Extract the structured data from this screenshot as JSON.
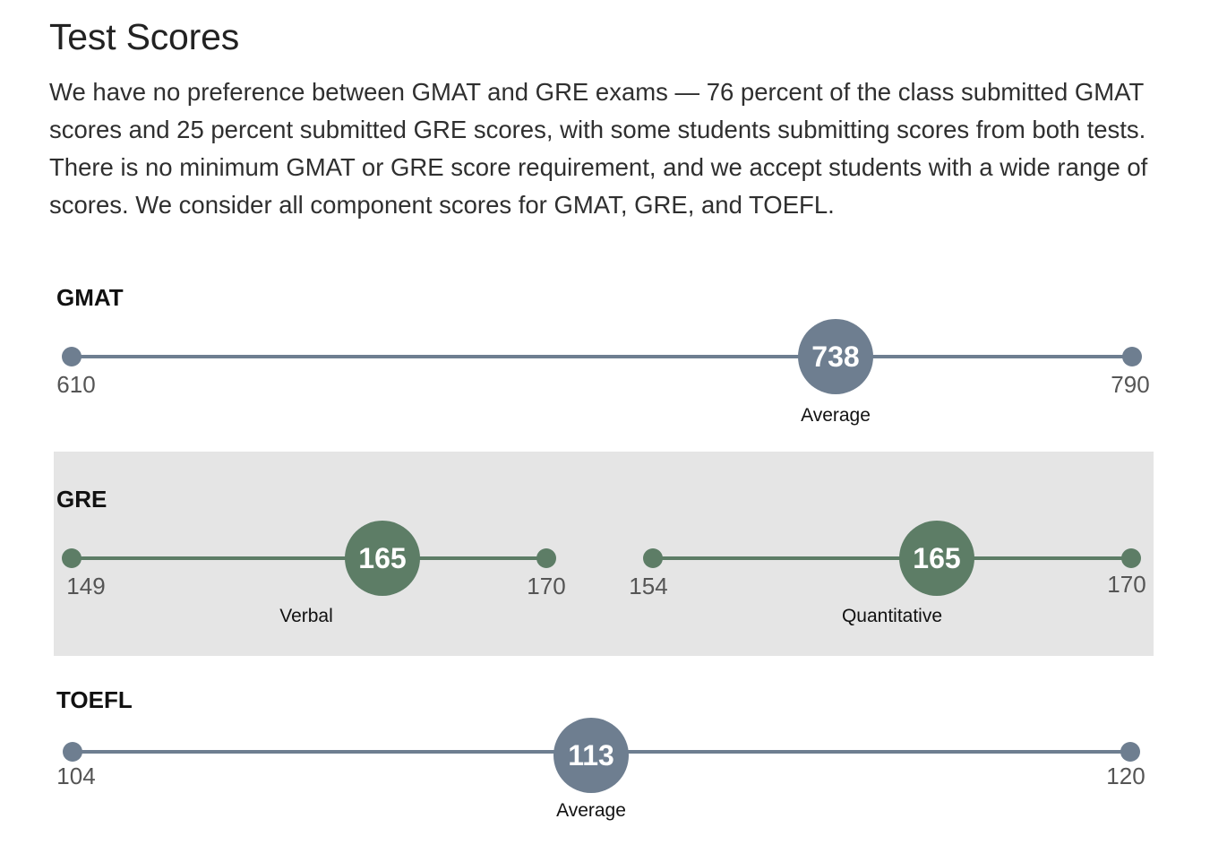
{
  "title": "Test Scores",
  "intro": "We have no preference between GMAT and GRE exams — 76 percent of the class submitted GMAT scores and 25 percent submitted GRE scores, with some students submitting scores from both tests. There is no minimum GMAT or GRE score requirement, and we accept students with a wide range of scores. We consider all component scores for GMAT, GRE, and TOEFL.",
  "colors": {
    "blue_accent": "#6e7e90",
    "green_accent": "#5d7d66",
    "shaded_background": "#e5e5e5"
  },
  "gmat": {
    "heading": "GMAT",
    "min": "610",
    "max": "790",
    "score": "738",
    "caption": "Average"
  },
  "gre": {
    "heading": "GRE",
    "verbal": {
      "min": "149",
      "max": "170",
      "score": "165",
      "caption": "Verbal"
    },
    "quantitative": {
      "min": "154",
      "max": "170",
      "score": "165",
      "caption": "Quantitative"
    }
  },
  "toefl": {
    "heading": "TOEFL",
    "min": "104",
    "max": "120",
    "score": "113",
    "caption": "Average"
  }
}
